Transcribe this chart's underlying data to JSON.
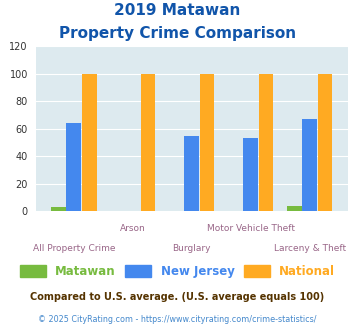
{
  "title_line1": "2019 Matawan",
  "title_line2": "Property Crime Comparison",
  "categories": [
    "All Property Crime",
    "Arson",
    "Burglary",
    "Motor Vehicle Theft",
    "Larceny & Theft"
  ],
  "cat_top": [
    "",
    "Arson",
    "",
    "Motor Vehicle Theft",
    ""
  ],
  "cat_bottom": [
    "All Property Crime",
    "",
    "Burglary",
    "",
    "Larceny & Theft"
  ],
  "matawan": [
    3,
    0,
    0,
    0,
    4
  ],
  "new_jersey": [
    64,
    0,
    55,
    53,
    67
  ],
  "national": [
    100,
    100,
    100,
    100,
    100
  ],
  "matawan_color": "#77bb3f",
  "nj_color": "#4488ee",
  "national_color": "#ffaa22",
  "ylim": [
    0,
    120
  ],
  "yticks": [
    0,
    20,
    40,
    60,
    80,
    100,
    120
  ],
  "bg_color": "#ddeaef",
  "title_color": "#1155aa",
  "xlabel_top_color": "#996688",
  "xlabel_bot_color": "#886699",
  "legend_label_matawan": "Matawan",
  "legend_label_nj": "New Jersey",
  "legend_label_national": "National",
  "footnote1": "Compared to U.S. average. (U.S. average equals 100)",
  "footnote2": "© 2025 CityRating.com - https://www.cityrating.com/crime-statistics/",
  "footnote1_color": "#553300",
  "footnote2_color": "#4488cc"
}
